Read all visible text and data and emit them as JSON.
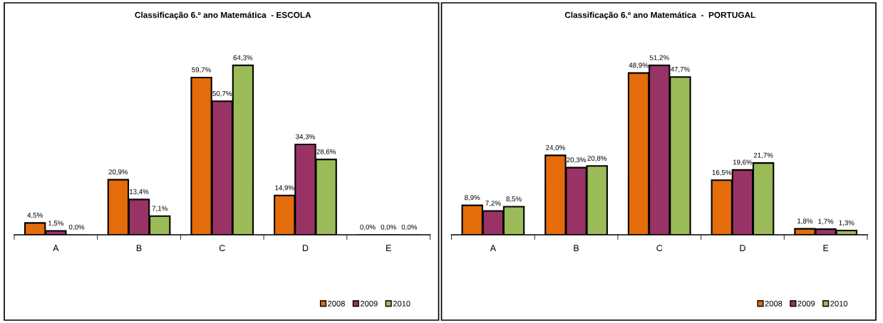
{
  "chart_data": [
    {
      "type": "bar",
      "title": "Classificação 6.º ano Matemática  - ESCOLA",
      "categories": [
        "A",
        "B",
        "C",
        "D",
        "E"
      ],
      "legend": "bottom right",
      "series": [
        {
          "name": "2008",
          "color": "#e46c0a",
          "values": [
            4.5,
            20.9,
            59.7,
            14.9,
            0.0
          ],
          "value_labels": [
            "4,5%",
            "20,9%",
            "59,7%",
            "14,9%",
            "0,0%"
          ]
        },
        {
          "name": "2009",
          "color": "#993366",
          "values": [
            1.5,
            13.4,
            50.7,
            34.3,
            0.0
          ],
          "value_labels": [
            "1,5%",
            "13,4%",
            "50,7%",
            "34,3%",
            "0,0%"
          ]
        },
        {
          "name": "2010",
          "color": "#9bbb59",
          "values": [
            0.0,
            7.1,
            64.3,
            28.6,
            0.0
          ],
          "value_labels": [
            "0,0%",
            "7,1%",
            "64,3%",
            "28,6%",
            "0,0%"
          ]
        }
      ]
    },
    {
      "type": "bar",
      "title": "Classificação 6.º ano Matemática  -  PORTUGAL",
      "categories": [
        "A",
        "B",
        "C",
        "D",
        "E"
      ],
      "legend": "bottom right",
      "series": [
        {
          "name": "2008",
          "color": "#e46c0a",
          "values": [
            8.9,
            24.0,
            48.9,
            16.5,
            1.8
          ],
          "value_labels": [
            "8,9%",
            "24,0%",
            "48,9%",
            "16,5%",
            "1,8%"
          ]
        },
        {
          "name": "2009",
          "color": "#993366",
          "values": [
            7.2,
            20.3,
            51.2,
            19.6,
            1.7
          ],
          "value_labels": [
            "7,2%",
            "20,3%",
            "51,2%",
            "19,6%",
            "1,7%"
          ]
        },
        {
          "name": "2010",
          "color": "#9bbb59",
          "values": [
            8.5,
            20.8,
            47.7,
            21.7,
            1.3
          ],
          "value_labels": [
            "8,5%",
            "20,8%",
            "47,7%",
            "21,7%",
            "1,3%"
          ]
        }
      ]
    }
  ]
}
